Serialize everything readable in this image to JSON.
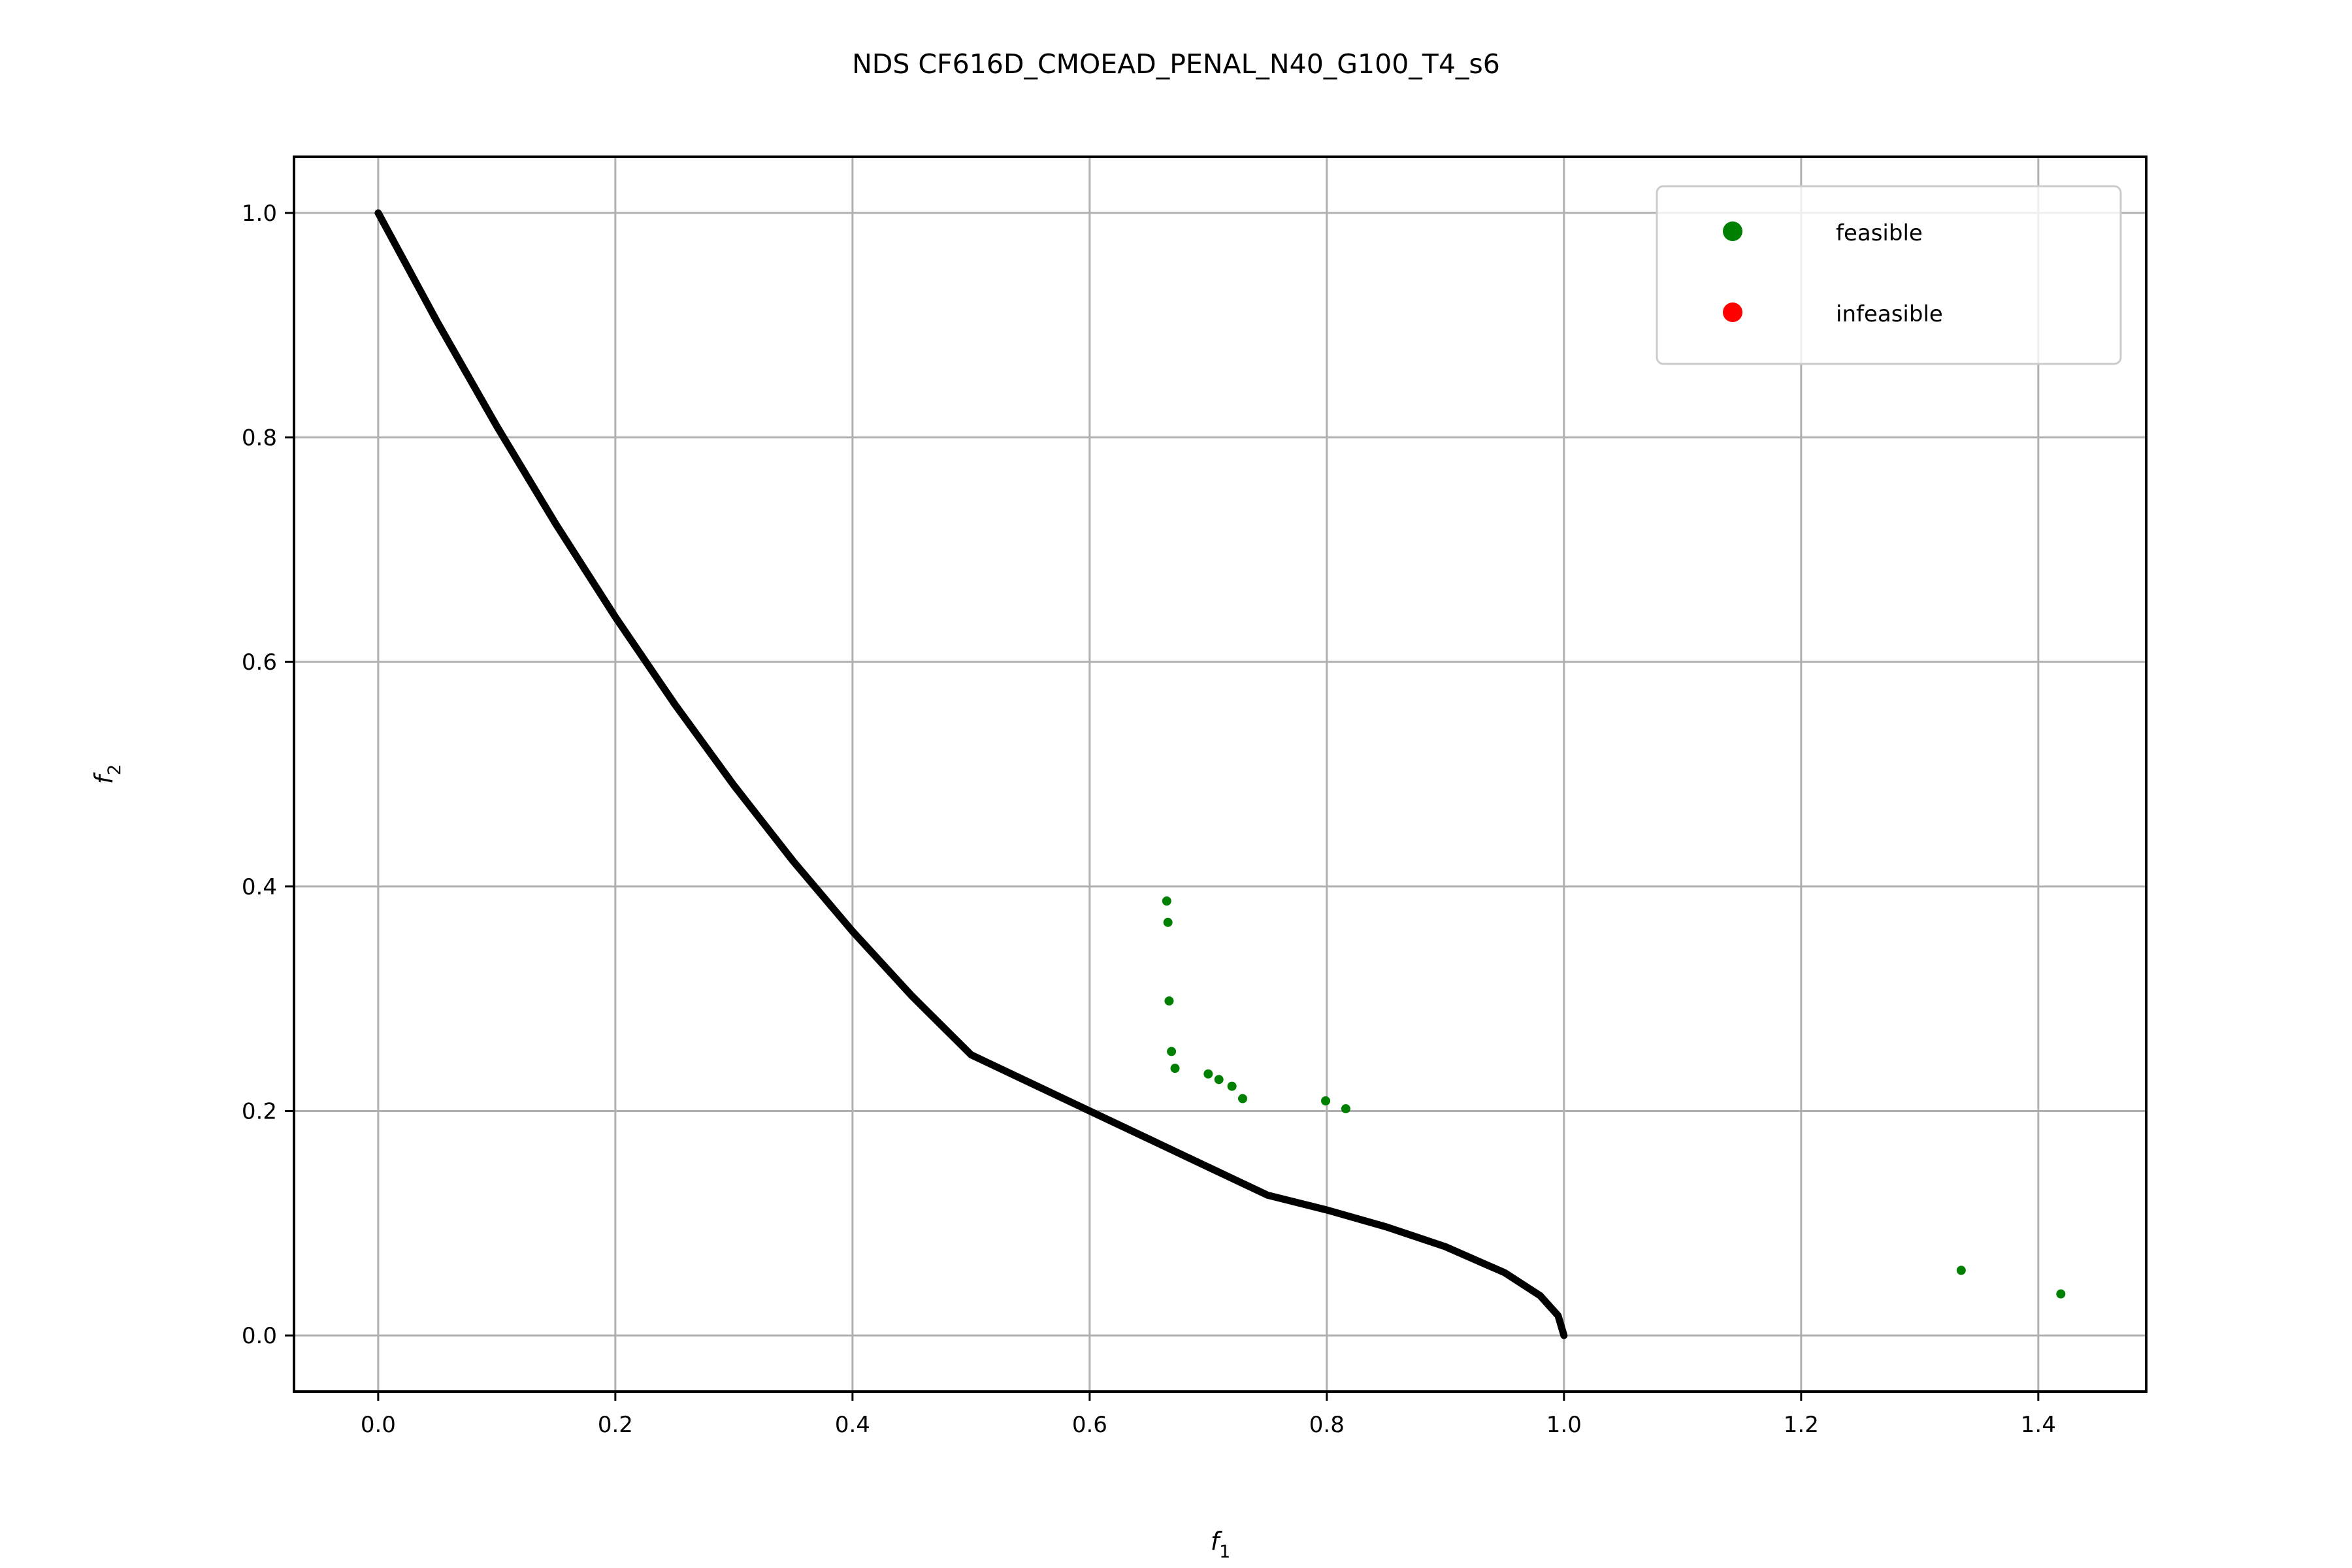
{
  "chart_data": {
    "type": "scatter",
    "title": "NDS CF616D_CMOEAD_PENAL_N40_G100_T4_s6",
    "xlabel": {
      "base": "f",
      "sub": "1"
    },
    "ylabel": {
      "base": "f",
      "sub": "2"
    },
    "xlim": [
      -0.071,
      1.491
    ],
    "ylim": [
      -0.05,
      1.05
    ],
    "xticks": [
      0.0,
      0.2,
      0.4,
      0.6,
      0.8,
      1.0,
      1.2,
      1.4
    ],
    "xtick_labels": [
      "0.0",
      "0.2",
      "0.4",
      "0.6",
      "0.8",
      "1.0",
      "1.2",
      "1.4"
    ],
    "yticks": [
      0.0,
      0.2,
      0.4,
      0.6,
      0.8,
      1.0
    ],
    "ytick_labels": [
      "0.0",
      "0.2",
      "0.4",
      "0.6",
      "0.8",
      "1.0"
    ],
    "grid": true,
    "legend_position": "top-right",
    "front": {
      "color": "#000000",
      "points": [
        [
          0.0,
          1.0
        ],
        [
          0.05,
          0.9025
        ],
        [
          0.1,
          0.81
        ],
        [
          0.15,
          0.7225
        ],
        [
          0.2,
          0.64
        ],
        [
          0.25,
          0.5625
        ],
        [
          0.3,
          0.49
        ],
        [
          0.35,
          0.4225
        ],
        [
          0.4,
          0.36
        ],
        [
          0.45,
          0.3025
        ],
        [
          0.5,
          0.25
        ],
        [
          0.55,
          0.225
        ],
        [
          0.6,
          0.2
        ],
        [
          0.65,
          0.175
        ],
        [
          0.7,
          0.15
        ],
        [
          0.75,
          0.125
        ],
        [
          0.8,
          0.1118
        ],
        [
          0.85,
          0.0968
        ],
        [
          0.9,
          0.0791
        ],
        [
          0.95,
          0.0559
        ],
        [
          0.98,
          0.0354
        ],
        [
          0.995,
          0.0177
        ],
        [
          1.0,
          0.0
        ]
      ]
    },
    "series": [
      {
        "name": "feasible",
        "color": "#008000",
        "points": [
          [
            0.665,
            0.387
          ],
          [
            0.666,
            0.368
          ],
          [
            0.667,
            0.298
          ],
          [
            0.669,
            0.253
          ],
          [
            0.672,
            0.238
          ],
          [
            0.7,
            0.233
          ],
          [
            0.709,
            0.228
          ],
          [
            0.72,
            0.222
          ],
          [
            0.729,
            0.211
          ],
          [
            0.799,
            0.209
          ],
          [
            0.816,
            0.202
          ],
          [
            1.335,
            0.058
          ],
          [
            1.419,
            0.037
          ]
        ]
      },
      {
        "name": "infeasible",
        "color": "#ff0000",
        "points": []
      }
    ]
  }
}
